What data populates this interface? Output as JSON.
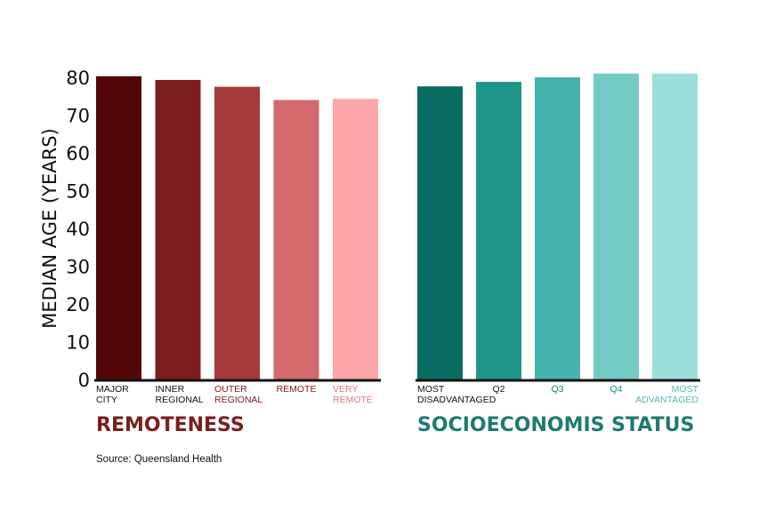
{
  "source": "Source: Queensland Health",
  "chart_data": {
    "type": "bar",
    "ylabel": "MEDIAN AGE (YEARS)",
    "ylim": [
      0,
      80
    ],
    "yticks": [
      0,
      10,
      20,
      30,
      40,
      50,
      60,
      70,
      80
    ],
    "groups": [
      {
        "name": "REMOTENESS",
        "color": "#7a1f1f",
        "bars": [
          {
            "label": [
              "MAJOR",
              "CITY"
            ],
            "value": 80.3,
            "color": "#530607",
            "label_color": "#111111"
          },
          {
            "label": [
              "INNER",
              "REGIONAL"
            ],
            "value": 79.3,
            "color": "#7d1c1e",
            "label_color": "#111111"
          },
          {
            "label": [
              "OUTER",
              "REGIONAL"
            ],
            "value": 77.5,
            "color": "#a6393a",
            "label_color": "#7d1c1e"
          },
          {
            "label": [
              "REMOTE"
            ],
            "value": 74.0,
            "color": "#d46a6c",
            "label_color": "#7d1c1e"
          },
          {
            "label": [
              "VERY",
              "REMOTE"
            ],
            "value": 74.3,
            "color": "#fba7a9",
            "label_color": "#e07a7c"
          }
        ]
      },
      {
        "name": "SOCIOECONOMIS STATUS",
        "color": "#1f7a70",
        "bars": [
          {
            "label": [
              "MOST",
              "DISADVANTAGED"
            ],
            "value": 77.6,
            "color": "#0a6b62",
            "label_color": "#111111"
          },
          {
            "label": [
              "Q2"
            ],
            "value": 78.8,
            "color": "#20958a",
            "label_color": "#111111"
          },
          {
            "label": [
              "Q3"
            ],
            "value": 80.0,
            "color": "#47b3ae",
            "label_color": "#1f7a70"
          },
          {
            "label": [
              "Q4"
            ],
            "value": 81.0,
            "color": "#74cbc6",
            "label_color": "#1f8a80"
          },
          {
            "label": [
              "MOST",
              "ADVANTAGED"
            ],
            "value": 81.0,
            "color": "#9ddfdb",
            "label_color": "#58b8b2"
          }
        ]
      }
    ]
  }
}
